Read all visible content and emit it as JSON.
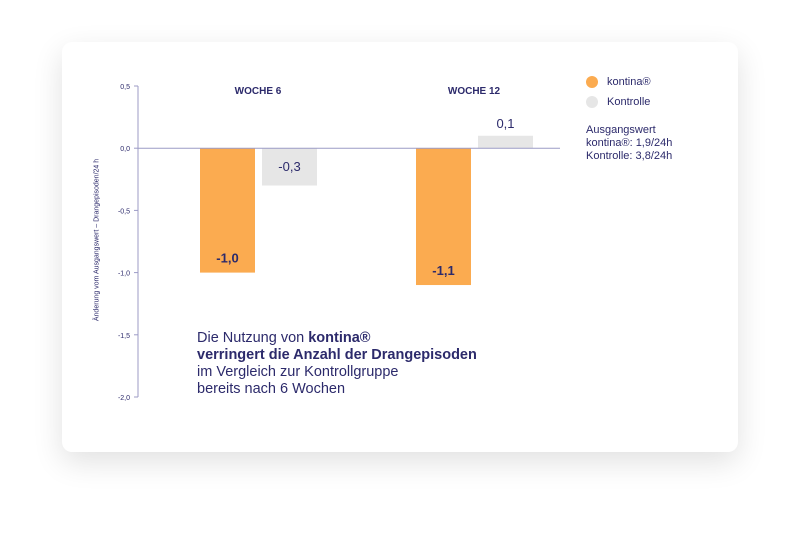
{
  "chart_data": {
    "type": "bar",
    "categories": [
      "WOCHE 6",
      "WOCHE 12"
    ],
    "series": [
      {
        "name": "kontina®",
        "color": "#fbab50",
        "values": [
          -1.0,
          -1.1
        ],
        "labels": [
          "-1,0",
          "-1,1"
        ]
      },
      {
        "name": "Kontrolle",
        "color": "#e6e6e6",
        "values": [
          -0.3,
          0.1
        ],
        "labels": [
          "-0,3",
          "0,1"
        ]
      }
    ],
    "ylabel": "Änderung vom Ausgangswert – Drangepisoden/24 h",
    "ylim": [
      -2.0,
      0.5
    ],
    "yticks": [
      0.5,
      0.0,
      -0.5,
      -1.0,
      -1.5,
      -2.0
    ],
    "ytick_labels": [
      "0,5",
      "0,0",
      "-0,5",
      "-1,0",
      "-1,5",
      "-2,0"
    ],
    "legend_position": "right"
  },
  "baseline": {
    "title": "Ausgangswert",
    "kontina": "kontina®: 1,9/24h",
    "kontrolle": "Kontrolle: 3,8/24h"
  },
  "message": {
    "part1": "Die Nutzung von ",
    "brand": "kontina®",
    "line2": "verringert die Anzahl der Drangepisoden",
    "line3": "im Vergleich zur Kontrollgruppe",
    "line4": "bereits nach 6 Wochen"
  },
  "colors": {
    "axis": "#9c9bc6",
    "text": "#2c2a6b"
  }
}
